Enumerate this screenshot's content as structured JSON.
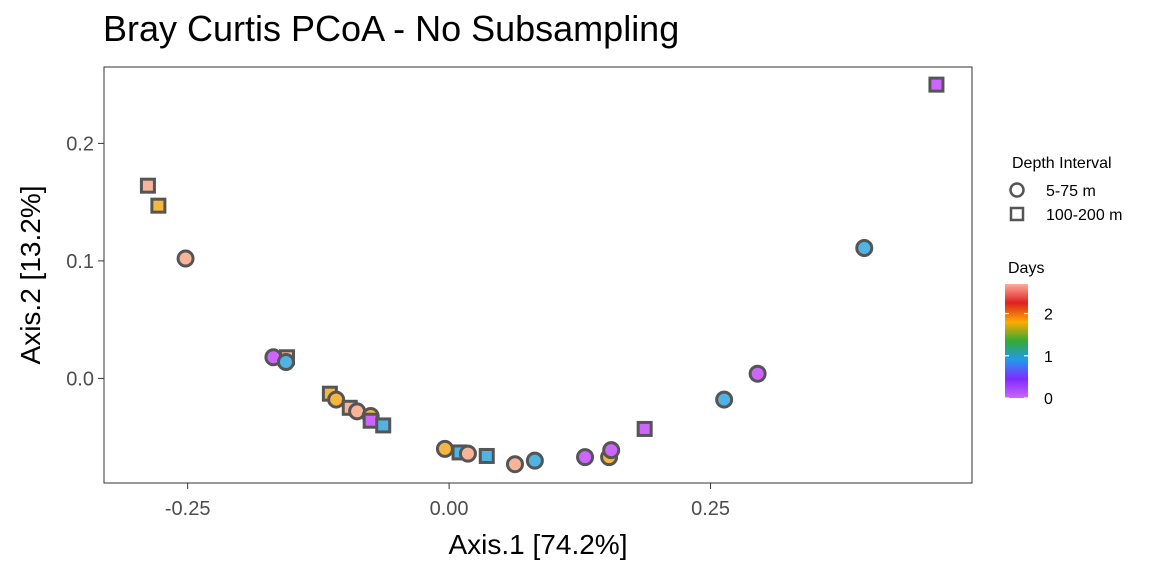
{
  "chart_data": {
    "type": "scatter",
    "title": "Bray Curtis PCoA - No Subsampling",
    "xlabel": "Axis.1   [74.2%]",
    "ylabel": "Axis.2   [13.2%]",
    "xlim": [
      -0.33,
      0.5
    ],
    "ylim": [
      -0.089,
      0.265
    ],
    "xticks": [
      {
        "v": -0.25,
        "label": "-0.25"
      },
      {
        "v": 0.0,
        "label": "0.00"
      },
      {
        "v": 0.25,
        "label": "0.25"
      }
    ],
    "yticks": [
      {
        "v": 0.0,
        "label": "0.0"
      },
      {
        "v": 0.1,
        "label": "0.1"
      },
      {
        "v": 0.2,
        "label": "0.2"
      }
    ],
    "grid": false,
    "shape_legend": {
      "title": "Depth Interval",
      "entries": [
        {
          "shape": "circle",
          "label": "5-75 m"
        },
        {
          "shape": "square",
          "label": "100-200 m"
        }
      ]
    },
    "color_legend": {
      "title": "Days",
      "ticks": [
        {
          "v": 2,
          "label": "2"
        },
        {
          "v": 1,
          "label": "1"
        },
        {
          "v": 0,
          "label": "0"
        }
      ],
      "range": [
        0,
        2.7
      ],
      "stops": [
        "#cc66ff",
        "#7f2bff",
        "#2299ee",
        "#33aa33",
        "#ffaa00",
        "#dd2222",
        "#ffaa99"
      ]
    },
    "points": [
      {
        "x": -0.288,
        "y": 0.164,
        "shape": "square",
        "color": "#f7b499"
      },
      {
        "x": -0.278,
        "y": 0.147,
        "shape": "square",
        "color": "#f5b73d"
      },
      {
        "x": -0.252,
        "y": 0.102,
        "shape": "circle",
        "color": "#f7b499"
      },
      {
        "x": -0.168,
        "y": 0.018,
        "shape": "circle",
        "color": "#cc66ff"
      },
      {
        "x": -0.155,
        "y": 0.018,
        "shape": "square",
        "color": "#f7b499"
      },
      {
        "x": -0.156,
        "y": 0.014,
        "shape": "circle",
        "color": "#4fb3e3"
      },
      {
        "x": -0.114,
        "y": -0.013,
        "shape": "square",
        "color": "#f5b73d"
      },
      {
        "x": -0.108,
        "y": -0.018,
        "shape": "circle",
        "color": "#f5b73d"
      },
      {
        "x": -0.095,
        "y": -0.025,
        "shape": "square",
        "color": "#f7b499"
      },
      {
        "x": -0.088,
        "y": -0.028,
        "shape": "circle",
        "color": "#f7b499"
      },
      {
        "x": -0.075,
        "y": -0.032,
        "shape": "circle",
        "color": "#f5b73d"
      },
      {
        "x": -0.075,
        "y": -0.036,
        "shape": "square",
        "color": "#cc66ff"
      },
      {
        "x": -0.063,
        "y": -0.04,
        "shape": "square",
        "color": "#4fb3e3"
      },
      {
        "x": -0.004,
        "y": -0.06,
        "shape": "circle",
        "color": "#f5b73d"
      },
      {
        "x": 0.01,
        "y": -0.063,
        "shape": "square",
        "color": "#4fb3e3"
      },
      {
        "x": 0.018,
        "y": -0.064,
        "shape": "circle",
        "color": "#f7b499"
      },
      {
        "x": 0.036,
        "y": -0.066,
        "shape": "square",
        "color": "#4fb3e3"
      },
      {
        "x": 0.063,
        "y": -0.073,
        "shape": "circle",
        "color": "#f7b499"
      },
      {
        "x": 0.082,
        "y": -0.07,
        "shape": "circle",
        "color": "#4fb3e3"
      },
      {
        "x": 0.13,
        "y": -0.067,
        "shape": "circle",
        "color": "#cc66ff"
      },
      {
        "x": 0.153,
        "y": -0.067,
        "shape": "circle",
        "color": "#f5b73d"
      },
      {
        "x": 0.155,
        "y": -0.061,
        "shape": "circle",
        "color": "#cc66ff"
      },
      {
        "x": 0.187,
        "y": -0.043,
        "shape": "square",
        "color": "#cc66ff"
      },
      {
        "x": 0.263,
        "y": -0.018,
        "shape": "circle",
        "color": "#4fb3e3"
      },
      {
        "x": 0.295,
        "y": 0.004,
        "shape": "circle",
        "color": "#cc66ff"
      },
      {
        "x": 0.397,
        "y": 0.111,
        "shape": "circle",
        "color": "#4fb3e3"
      },
      {
        "x": 0.466,
        "y": 0.25,
        "shape": "square",
        "color": "#cc66ff"
      }
    ]
  }
}
